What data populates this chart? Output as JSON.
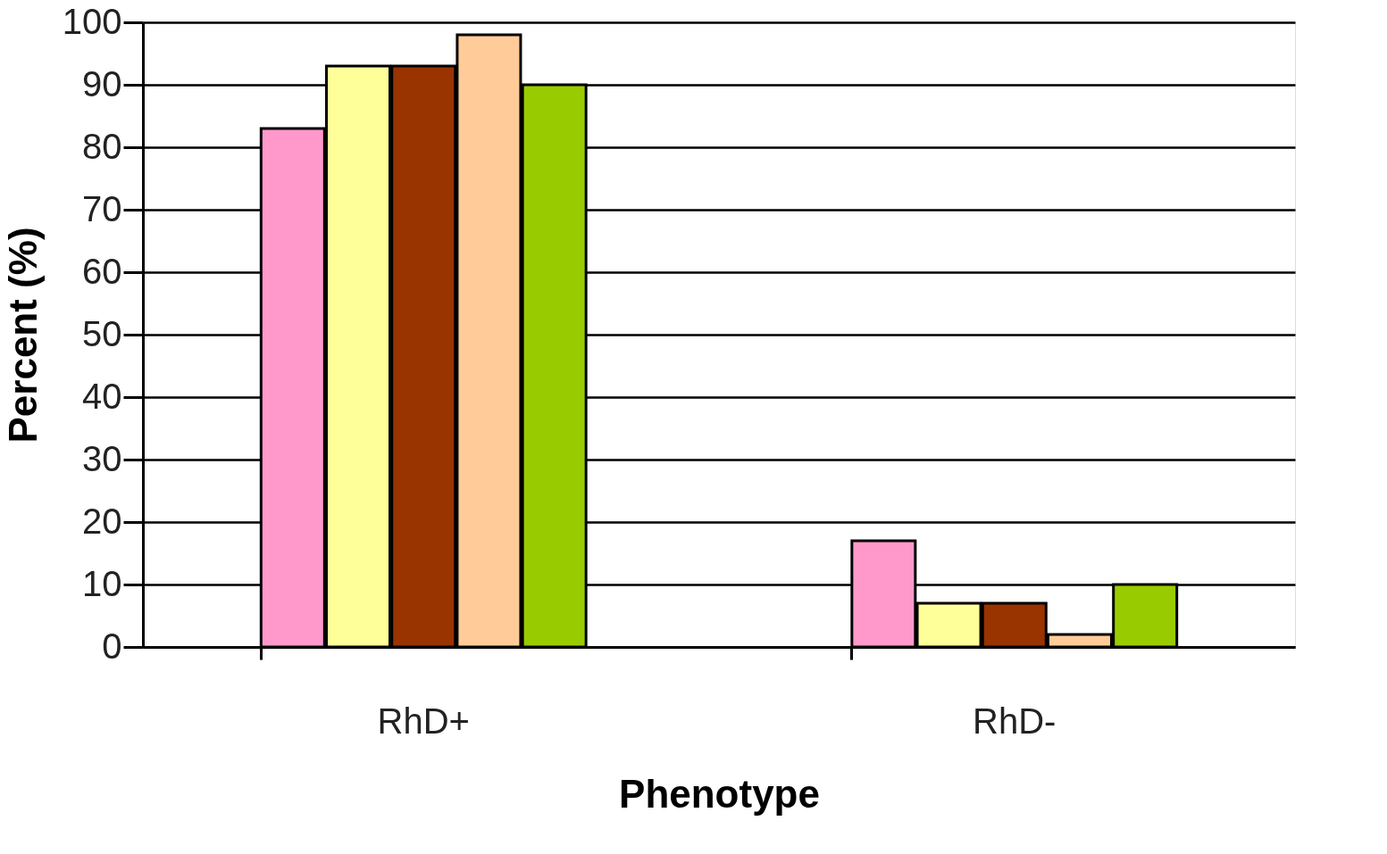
{
  "chart_data": {
    "type": "bar",
    "xlabel": "Phenotype",
    "ylabel": "Percent (%)",
    "categories": [
      "RhD+",
      "RhD-"
    ],
    "series": [
      {
        "color": "#ff99cc",
        "values": [
          83,
          17
        ]
      },
      {
        "color": "#ffff99",
        "values": [
          93,
          7
        ]
      },
      {
        "color": "#993300",
        "values": [
          93,
          7
        ]
      },
      {
        "color": "#ffcc99",
        "values": [
          98,
          2
        ]
      },
      {
        "color": "#99cc00",
        "values": [
          90,
          10
        ]
      }
    ],
    "ylim": [
      0,
      100
    ],
    "yticks": [
      0,
      10,
      20,
      30,
      40,
      50,
      60,
      70,
      80,
      90,
      100
    ],
    "grid": "y",
    "legend": false
  }
}
